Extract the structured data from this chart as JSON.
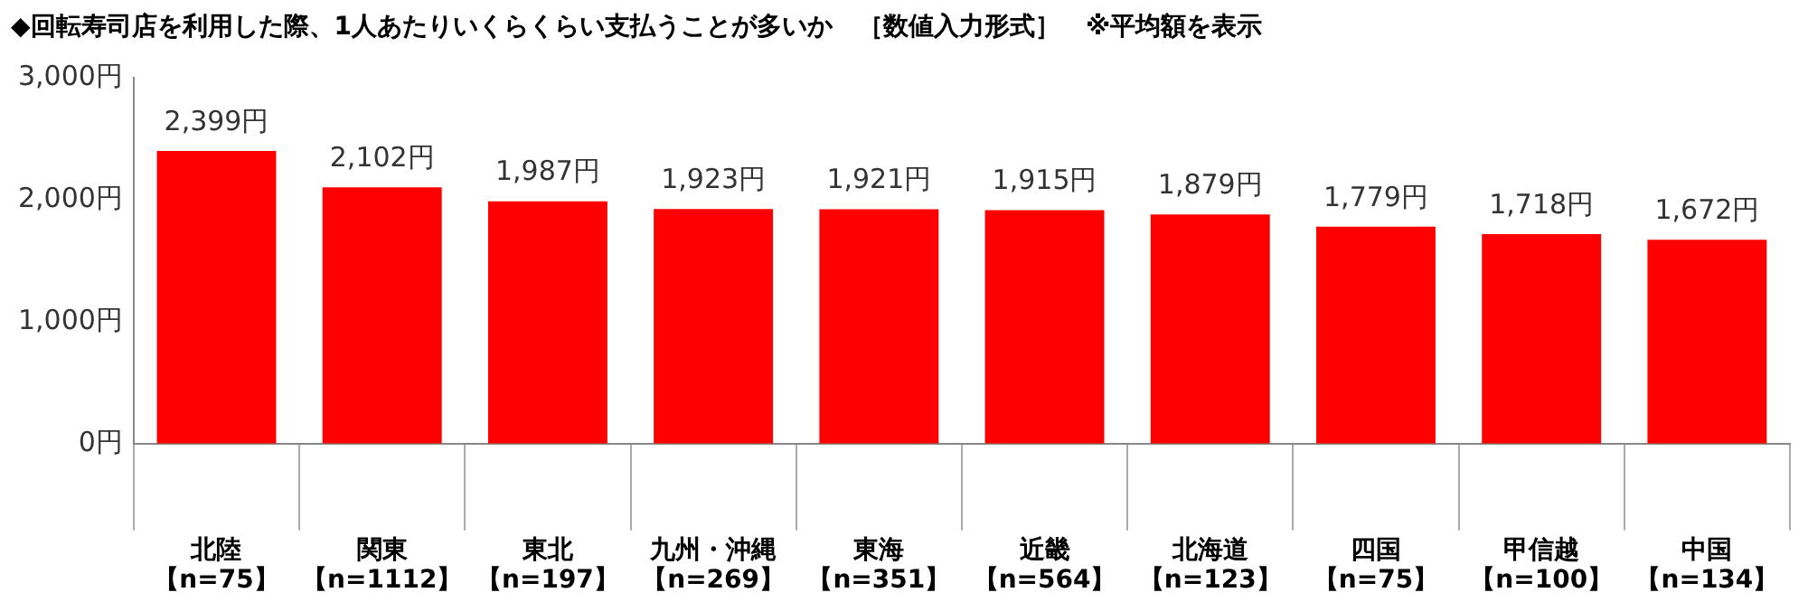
{
  "chart_data": {
    "type": "bar",
    "title": "◆回転寿司店を利用した際、1人あたりいくらくらい支払うことが多いか　［数値入力形式］　※平均額を表示",
    "categories": [
      "北陸【n=75】",
      "関東【n=1112】",
      "東北【n=197】",
      "九州・沖縄【n=269】",
      "東海【n=351】",
      "近畿【n=564】",
      "北海道【n=123】",
      "四国【n=75】",
      "甲信越【n=100】",
      "中国【n=134】"
    ],
    "values": [
      2399,
      2102,
      1987,
      1923,
      1921,
      1915,
      1879,
      1779,
      1718,
      1672
    ],
    "value_labels": [
      "2,399円",
      "2,102円",
      "1,987円",
      "1,923円",
      "1,921円",
      "1,915円",
      "1,879円",
      "1,779円",
      "1,718円",
      "1,672円"
    ],
    "color": "#ff0000",
    "ylim": [
      0,
      3000
    ],
    "yticks": [
      {
        "value": 0,
        "label": "0円"
      },
      {
        "value": 1000,
        "label": "1,000円"
      },
      {
        "value": 2000,
        "label": "2,000円"
      },
      {
        "value": 3000,
        "label": "3,000円"
      }
    ],
    "grid": false,
    "legend": false
  }
}
